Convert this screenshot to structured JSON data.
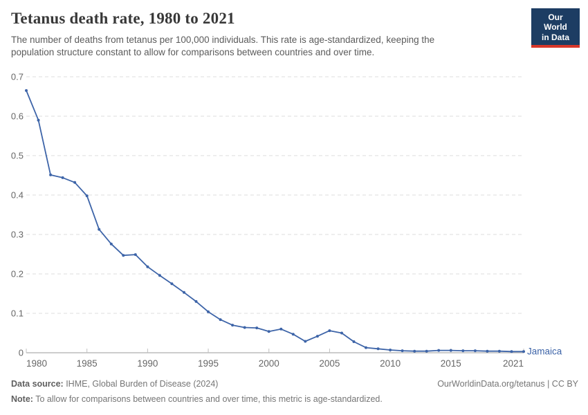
{
  "header": {
    "title": "Tetanus death rate, 1980 to 2021",
    "subtitle": "The number of deaths from tetanus per 100,000 individuals. This rate is age-standardized, keeping the population structure constant to allow for comparisons between countries and over time.",
    "logo": {
      "line1": "Our World",
      "line2": "in Data",
      "bg_color": "#1d3d63",
      "bar_color": "#d8372a"
    }
  },
  "chart_data": {
    "type": "line",
    "title": "Tetanus death rate, 1980 to 2021",
    "xlabel": "",
    "ylabel": "",
    "xlim": [
      1980,
      2021
    ],
    "ylim": [
      0,
      0.7
    ],
    "x_ticks": [
      1980,
      1985,
      1990,
      1995,
      2000,
      2005,
      2010,
      2015,
      2021
    ],
    "y_ticks": [
      0,
      0.1,
      0.2,
      0.3,
      0.4,
      0.5,
      0.6,
      0.7
    ],
    "grid": "horizontal-dashed",
    "legend_position": "end-of-line-label",
    "colors": {
      "grid": "#dcdcdc",
      "axis_line": "#999999",
      "tick": "#c0c0c0",
      "tick_label": "#666666"
    },
    "x": [
      1980,
      1981,
      1982,
      1983,
      1984,
      1985,
      1986,
      1987,
      1988,
      1989,
      1990,
      1991,
      1992,
      1993,
      1994,
      1995,
      1996,
      1997,
      1998,
      1999,
      2000,
      2001,
      2002,
      2003,
      2004,
      2005,
      2006,
      2007,
      2008,
      2009,
      2010,
      2011,
      2012,
      2013,
      2014,
      2015,
      2016,
      2017,
      2018,
      2019,
      2020,
      2021
    ],
    "series": [
      {
        "name": "Jamaica",
        "color": "#3d64a8",
        "values": [
          0.665,
          0.59,
          0.451,
          0.444,
          0.432,
          0.398,
          0.313,
          0.276,
          0.247,
          0.249,
          0.218,
          0.196,
          0.175,
          0.153,
          0.13,
          0.104,
          0.084,
          0.07,
          0.064,
          0.063,
          0.054,
          0.06,
          0.047,
          0.029,
          0.042,
          0.056,
          0.05,
          0.028,
          0.013,
          0.01,
          0.007,
          0.005,
          0.004,
          0.004,
          0.006,
          0.006,
          0.005,
          0.005,
          0.004,
          0.004,
          0.003,
          0.003
        ]
      }
    ]
  },
  "footer": {
    "source_label": "Data source:",
    "source_text": " IHME, Global Burden of Disease (2024)",
    "link": "OurWorldinData.org/tetanus | CC BY",
    "note_label": "Note:",
    "note_text": " To allow for comparisons between countries and over time, this metric is age-standardized."
  }
}
